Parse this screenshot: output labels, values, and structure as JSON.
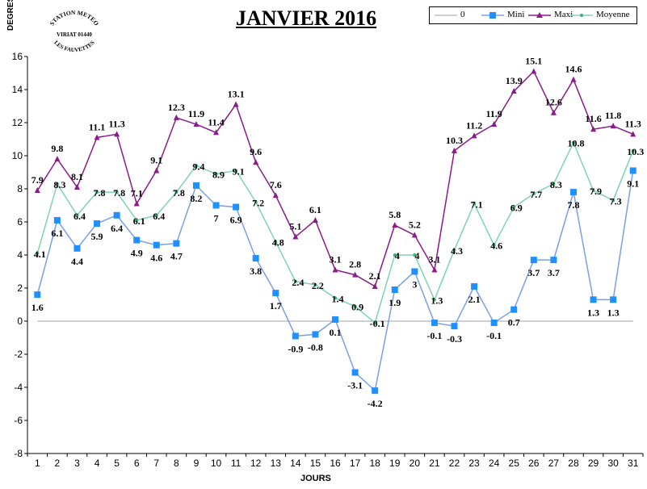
{
  "chart_data": {
    "type": "line",
    "title": "JANVIER 2016",
    "xlabel": "JOURS",
    "ylabel": "DEGRES",
    "categories": [
      1,
      2,
      3,
      4,
      5,
      6,
      7,
      8,
      9,
      10,
      11,
      12,
      13,
      14,
      15,
      16,
      17,
      18,
      19,
      20,
      21,
      22,
      23,
      24,
      25,
      26,
      27,
      28,
      29,
      30,
      31
    ],
    "ylim": [
      -8,
      16
    ],
    "yticks": [
      -8,
      -6,
      -4,
      -2,
      0,
      2,
      4,
      6,
      8,
      10,
      12,
      14,
      16
    ],
    "grid": false,
    "legend_position": "top-right",
    "series": [
      {
        "name": "0",
        "color": "#a0a0a0",
        "marker": "none",
        "values": [
          0,
          0,
          0,
          0,
          0,
          0,
          0,
          0,
          0,
          0,
          0,
          0,
          0,
          0,
          0,
          0,
          0,
          0,
          0,
          0,
          0,
          0,
          0,
          0,
          0,
          0,
          0,
          0,
          0,
          0,
          0
        ]
      },
      {
        "name": "Mini",
        "color": "#1e90ff",
        "line_color": "#7a9fe6",
        "marker": "square",
        "values": [
          1.6,
          6.1,
          4.4,
          5.9,
          6.4,
          4.9,
          4.6,
          4.7,
          8.2,
          7,
          6.9,
          3.8,
          1.7,
          -0.9,
          -0.8,
          0.1,
          -3.1,
          -4.2,
          1.9,
          3,
          -0.1,
          -0.3,
          2.1,
          -0.1,
          0.7,
          3.7,
          3.7,
          7.8,
          1.3,
          1.3,
          9.1
        ],
        "labels": [
          "1.6",
          "6.1",
          "4.4",
          "5.9",
          "6.4",
          "4.9",
          "4.6",
          "4.7",
          "8.2",
          "7",
          "6.9",
          "3.8",
          "1.7",
          "-0.9",
          "-0.8",
          "0.1",
          "-3.1",
          "-4.2",
          "1.9",
          "3",
          "-0.1",
          "-0.3",
          "2.1",
          "-0.1",
          "0.7",
          "3.7",
          "3.7",
          "7.8",
          "1.3",
          "1.3",
          "9.1"
        ]
      },
      {
        "name": "Maxi",
        "color": "#8b1a8b",
        "marker": "triangle",
        "values": [
          7.9,
          9.8,
          8.1,
          11.1,
          11.3,
          7.1,
          9.1,
          12.3,
          11.9,
          11.4,
          13.1,
          9.6,
          7.6,
          5.1,
          6.1,
          3.1,
          2.8,
          2.1,
          5.8,
          5.2,
          3.1,
          10.3,
          11.2,
          11.9,
          13.9,
          15.1,
          12.6,
          14.6,
          11.6,
          11.8,
          11.3
        ],
        "labels": [
          "7.9",
          "9.8",
          "8.1",
          "11.1",
          "11.3",
          "7.1",
          "9.1",
          "12.3",
          "11.9",
          "11.4",
          "13.1",
          "9.6",
          "7.6",
          "5.1",
          "6.1",
          "3.1",
          "2.8",
          "2.1",
          "5.8",
          "5.2",
          "3.1",
          "10.3",
          "11.2",
          "11.9",
          "13.9",
          "15.1",
          "12.6",
          "14.6",
          "11.6",
          "11.8",
          "11.3"
        ]
      },
      {
        "name": "Moyenne",
        "color": "#7fd4b0",
        "marker": "dot",
        "values": [
          4.1,
          8.3,
          6.4,
          7.8,
          7.8,
          6.1,
          6.4,
          7.8,
          9.4,
          8.9,
          9.1,
          7.2,
          4.8,
          2.4,
          2.2,
          1.4,
          0.9,
          -0.1,
          4,
          4,
          1.3,
          4.3,
          7.1,
          4.6,
          6.9,
          7.7,
          8.3,
          10.8,
          7.9,
          7.3,
          10.3
        ],
        "labels": [
          "4.1",
          "8.3",
          "6.4",
          "7.8",
          "7.8",
          "6.1",
          "6.4",
          "7.8",
          "9.4",
          "8.9",
          "9.1",
          "7.2",
          "4.8",
          "2.4",
          "2.2",
          "1.4",
          "0.9",
          "-0.1",
          "4",
          "4",
          "1.3",
          "4.3",
          "7.1",
          "4.6",
          "6.9",
          "7.7",
          "8.3",
          "10.8",
          "7.9",
          "7.3",
          "10.3"
        ]
      }
    ]
  },
  "logo": {
    "line1": "STATION METEO",
    "line2": "VIRIAT 01440",
    "line3": "LES FAUVETTES"
  }
}
